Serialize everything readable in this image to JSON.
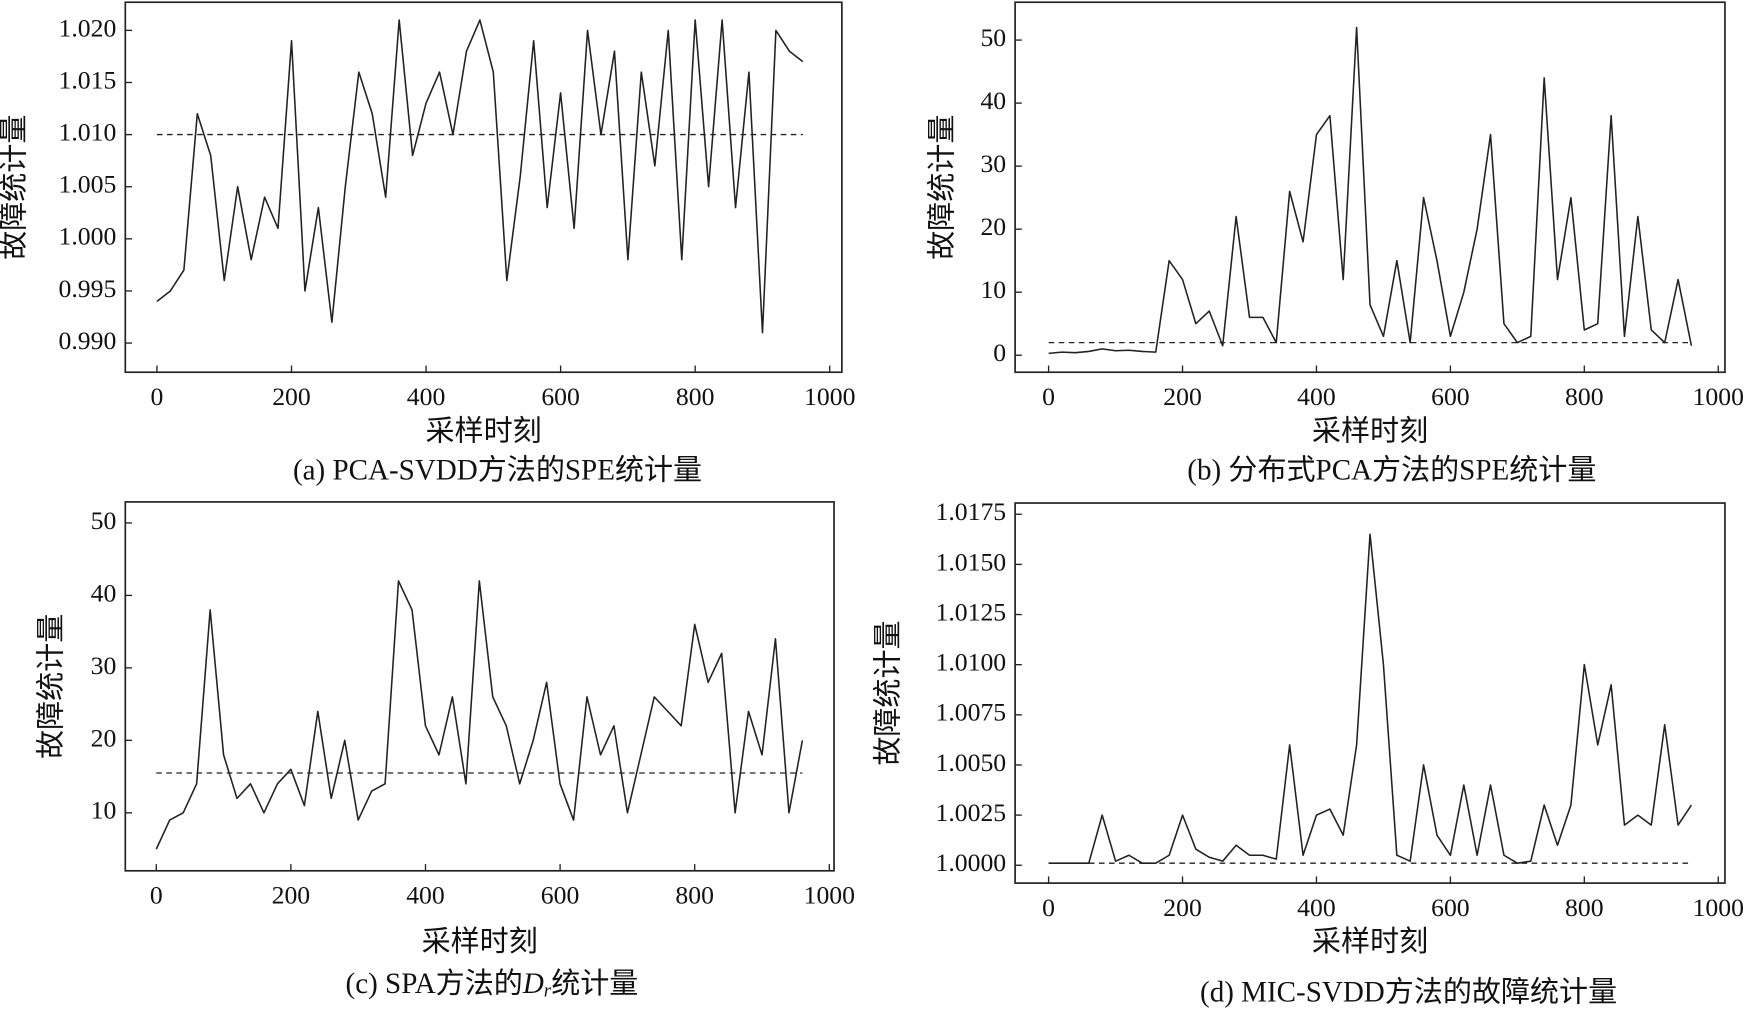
{
  "chart_data": [
    {
      "type": "line",
      "ylabel": "故障统计量",
      "xlabel": "采样时刻",
      "caption": "(a) PCA-SVDD方法的SPE统计量",
      "xlim": [
        -47,
        1018
      ],
      "ylim": [
        0.9872,
        1.0227
      ],
      "xticks": [
        0,
        200,
        400,
        600,
        800,
        1000
      ],
      "yticks": [
        {
          "value": 0.99,
          "label": "0.990"
        },
        {
          "value": 0.995,
          "label": "0.995"
        },
        {
          "value": 1.0,
          "label": "1.000"
        },
        {
          "value": 1.005,
          "label": "1.005"
        },
        {
          "value": 1.01,
          "label": "1.010"
        },
        {
          "value": 1.015,
          "label": "1.015"
        },
        {
          "value": 1.02,
          "label": "1.020"
        }
      ],
      "series": [
        {
          "color": "#222",
          "linestyle": "solid",
          "x": [
            0,
            20,
            40,
            60,
            80,
            100,
            120,
            140,
            160,
            180,
            200,
            220,
            240,
            260,
            280,
            300,
            320,
            340,
            360,
            380,
            400,
            420,
            440,
            460,
            480,
            500,
            520,
            540,
            560,
            580,
            600,
            620,
            640,
            660,
            680,
            700,
            720,
            740,
            760,
            780,
            800,
            820,
            840,
            860,
            880,
            900,
            920,
            940,
            960
          ],
          "values": [
            0.994,
            0.995,
            0.997,
            1.012,
            1.008,
            0.996,
            1.005,
            0.998,
            1.004,
            1.001,
            1.019,
            0.995,
            1.003,
            0.992,
            1.005,
            1.016,
            1.012,
            1.004,
            1.021,
            1.008,
            1.013,
            1.016,
            1.01,
            1.018,
            1.021,
            1.016,
            0.996,
            1.006,
            1.019,
            1.003,
            1.014,
            1.001,
            1.02,
            1.01,
            1.018,
            0.998,
            1.016,
            1.007,
            1.02,
            0.998,
            1.021,
            1.005,
            1.021,
            1.003,
            1.016,
            0.991,
            1.02,
            1.018,
            1.017
          ]
        },
        {
          "color": "#222",
          "linestyle": "dashed",
          "x": [
            0,
            960
          ],
          "values": [
            1.01,
            1.01
          ]
        }
      ]
    },
    {
      "type": "line",
      "ylabel": "故障统计量",
      "xlabel": "采样时刻",
      "caption": "(b) 分布式PCA方法的SPE统计量",
      "xlim": [
        -50,
        1010
      ],
      "ylim": [
        -2.7,
        56
      ],
      "xticks": [
        0,
        200,
        400,
        600,
        800,
        1000
      ],
      "yticks": [
        0,
        10,
        20,
        30,
        40,
        50
      ],
      "series": [
        {
          "color": "#222",
          "linestyle": "solid",
          "x": [
            0,
            20,
            40,
            60,
            80,
            100,
            120,
            140,
            160,
            180,
            200,
            220,
            240,
            260,
            280,
            300,
            320,
            340,
            360,
            380,
            400,
            420,
            440,
            460,
            480,
            500,
            520,
            540,
            560,
            580,
            600,
            620,
            640,
            660,
            680,
            700,
            720,
            740,
            760,
            780,
            800,
            820,
            840,
            860,
            880,
            900,
            920,
            940,
            960
          ],
          "values": [
            0.3,
            0.5,
            0.4,
            0.6,
            1.0,
            0.7,
            0.8,
            0.6,
            0.5,
            15,
            12,
            5,
            7,
            1.5,
            22,
            6,
            6,
            2,
            26,
            18,
            35,
            38,
            12,
            52,
            8,
            3,
            15,
            2,
            25,
            15,
            3,
            10,
            20,
            35,
            5,
            2,
            3,
            44,
            12,
            25,
            4,
            5,
            38,
            3,
            22,
            4,
            2,
            12,
            1.5
          ]
        },
        {
          "color": "#222",
          "linestyle": "dashed",
          "x": [
            0,
            960
          ],
          "values": [
            2,
            2
          ]
        }
      ]
    },
    {
      "type": "line",
      "ylabel": "故障统计量",
      "xlabel": "采样时刻",
      "caption_parts": [
        "(c) SPA方法的",
        "D",
        "r",
        "统计量"
      ],
      "xlim": [
        -46,
        1007
      ],
      "ylim": [
        2.0,
        52.9
      ],
      "xticks": [
        0,
        200,
        400,
        600,
        800,
        1000
      ],
      "yticks": [
        10,
        20,
        30,
        40,
        50
      ],
      "series": [
        {
          "color": "#222",
          "linestyle": "solid",
          "x": [
            0,
            20,
            40,
            60,
            80,
            100,
            120,
            140,
            160,
            180,
            200,
            220,
            240,
            260,
            280,
            300,
            320,
            340,
            360,
            380,
            400,
            420,
            440,
            460,
            480,
            500,
            520,
            540,
            560,
            580,
            600,
            620,
            640,
            660,
            680,
            700,
            720,
            740,
            760,
            780,
            800,
            820,
            840,
            860,
            880,
            900,
            920,
            940,
            960
          ],
          "values": [
            5,
            9,
            10,
            14,
            38,
            18,
            12,
            14,
            10,
            14,
            16,
            11,
            24,
            12,
            20,
            9,
            13,
            14,
            42,
            38,
            22,
            18,
            26,
            14,
            42,
            26,
            22,
            14,
            20,
            28,
            14,
            9,
            26,
            18,
            22,
            10,
            18,
            26,
            24,
            22,
            36,
            28,
            32,
            10,
            24,
            18,
            34,
            10,
            20
          ]
        },
        {
          "color": "#222",
          "linestyle": "dashed",
          "x": [
            0,
            960
          ],
          "values": [
            15.5,
            15.5
          ]
        }
      ]
    },
    {
      "type": "line",
      "ylabel": "故障统计量",
      "xlabel": "采样时刻",
      "caption": "(d) MIC-SVDD方法的故障统计量",
      "xlim": [
        -50,
        1010
      ],
      "ylim": [
        0.99911,
        1.01806
      ],
      "xticks": [
        0,
        200,
        400,
        600,
        800,
        1000
      ],
      "yticks": [
        {
          "value": 1.0,
          "label": "1.0000"
        },
        {
          "value": 1.0025,
          "label": "1.0025"
        },
        {
          "value": 1.005,
          "label": "1.0050"
        },
        {
          "value": 1.0075,
          "label": "1.0075"
        },
        {
          "value": 1.01,
          "label": "1.0100"
        },
        {
          "value": 1.0125,
          "label": "1.0125"
        },
        {
          "value": 1.015,
          "label": "1.0150"
        },
        {
          "value": 1.0175,
          "label": "1.0175"
        }
      ],
      "series": [
        {
          "color": "#222",
          "linestyle": "solid",
          "x": [
            0,
            20,
            40,
            60,
            80,
            100,
            120,
            140,
            160,
            180,
            200,
            220,
            240,
            260,
            280,
            300,
            320,
            340,
            360,
            380,
            400,
            420,
            440,
            460,
            480,
            500,
            520,
            540,
            560,
            580,
            600,
            620,
            640,
            660,
            680,
            700,
            720,
            740,
            760,
            780,
            800,
            820,
            840,
            860,
            880,
            900,
            920,
            940,
            960
          ],
          "values": [
            1.0001,
            1.0001,
            1.0001,
            1.0001,
            1.0025,
            1.0002,
            1.0005,
            1.0001,
            1.0001,
            1.0005,
            1.0025,
            1.0008,
            1.0004,
            1.0002,
            1.001,
            1.0005,
            1.0005,
            1.0003,
            1.006,
            1.0005,
            1.0025,
            1.0028,
            1.0015,
            1.006,
            1.0165,
            1.01,
            1.0005,
            1.0002,
            1.005,
            1.0015,
            1.0005,
            1.004,
            1.0005,
            1.004,
            1.0005,
            1.0001,
            1.0002,
            1.003,
            1.001,
            1.003,
            1.01,
            1.006,
            1.009,
            1.002,
            1.0025,
            1.002,
            1.007,
            1.002,
            1.003
          ]
        },
        {
          "color": "#222",
          "linestyle": "dashed",
          "x": [
            0,
            960
          ],
          "values": [
            1.0001,
            1.0001
          ]
        }
      ]
    }
  ]
}
